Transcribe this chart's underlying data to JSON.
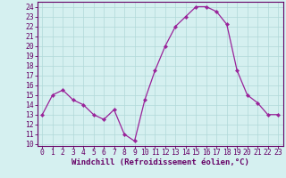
{
  "x": [
    0,
    1,
    2,
    3,
    4,
    5,
    6,
    7,
    8,
    9,
    10,
    11,
    12,
    13,
    14,
    15,
    16,
    17,
    18,
    19,
    20,
    21,
    22,
    23
  ],
  "y": [
    13,
    15,
    15.5,
    14.5,
    14,
    13,
    12.5,
    13.5,
    11,
    10.3,
    14.5,
    17.5,
    20,
    22,
    23,
    24,
    24,
    23.5,
    22.2,
    17.5,
    15,
    14.2,
    13,
    13
  ],
  "line_color": "#992299",
  "marker": "D",
  "marker_size": 2.2,
  "bg_color": "#d5f0f0",
  "grid_color": "#b0d8d8",
  "xlabel": "Windchill (Refroidissement éolien,°C)",
  "ylabel_ticks": [
    10,
    11,
    12,
    13,
    14,
    15,
    16,
    17,
    18,
    19,
    20,
    21,
    22,
    23,
    24
  ],
  "xlim": [
    -0.5,
    23.5
  ],
  "ylim": [
    9.8,
    24.5
  ],
  "line_width": 0.9,
  "tick_color": "#660066",
  "axis_color": "#660066",
  "xlabel_fontsize": 6.5,
  "tick_fontsize": 5.8
}
